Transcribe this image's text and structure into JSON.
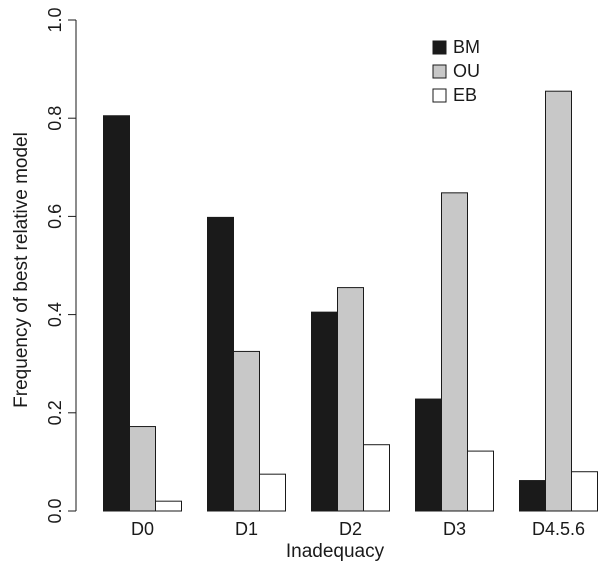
{
  "chart_data": {
    "type": "bar",
    "xlabel": "Inadequacy",
    "ylabel": "Frequency of best relative model",
    "categories": [
      "D0",
      "D1",
      "D2",
      "D3",
      "D4.5.6"
    ],
    "ylim": [
      0,
      1
    ],
    "yticks": [
      "0.0",
      "0.2",
      "0.4",
      "0.6",
      "0.8",
      "1.0"
    ],
    "grid": false,
    "legend": "top-right",
    "series": [
      {
        "name": "BM",
        "color": "#1a1a1a",
        "values": [
          0.805,
          0.598,
          0.405,
          0.228,
          0.062
        ]
      },
      {
        "name": "OU",
        "color": "#c8c8c8",
        "values": [
          0.172,
          0.325,
          0.455,
          0.648,
          0.855
        ]
      },
      {
        "name": "EB",
        "color": "#ffffff",
        "values": [
          0.02,
          0.075,
          0.135,
          0.122,
          0.08
        ]
      }
    ]
  }
}
